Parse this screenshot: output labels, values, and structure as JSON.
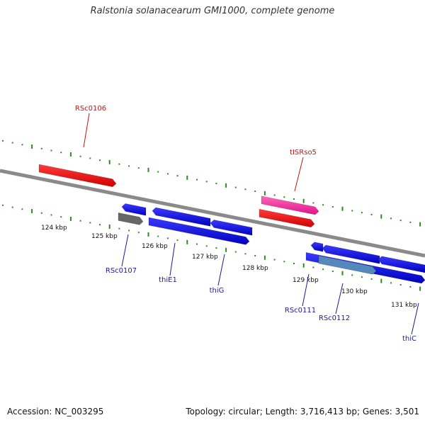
{
  "title": "Ralstonia solanacearum GMI1000, complete genome",
  "footer": {
    "accession": "Accession: NC_003295",
    "summary": "Topology: circular; Length: 3,716,413 bp; Genes: 3,501"
  },
  "colors": {
    "backbone": "#8a8a8a",
    "tick": "#2f8a1e",
    "gene": "#1010e8",
    "rna": "#ff1a1a",
    "pseudo": "#666666",
    "mobile": "#ff4aa5",
    "highlight": "#5588bb",
    "label_blue": "#1a1a9a",
    "label_red": "#cc1111"
  },
  "scale_labels": [
    "124 kbp",
    "125 kbp",
    "126 kbp",
    "127 kbp",
    "128 kbp",
    "129 kbp",
    "130 kbp",
    "131 kbp"
  ],
  "gene_labels": [
    {
      "text": "RSc0106",
      "color": "label_red"
    },
    {
      "text": "tISRso5",
      "color": "label_red"
    },
    {
      "text": "RSc0107",
      "color": "label_blue"
    },
    {
      "text": "thiE1",
      "color": "label_blue"
    },
    {
      "text": "thiG",
      "color": "label_blue"
    },
    {
      "text": "RSc0111",
      "color": "label_blue"
    },
    {
      "text": "RSc0112",
      "color": "label_blue"
    },
    {
      "text": "thiC",
      "color": "label_blue"
    }
  ]
}
